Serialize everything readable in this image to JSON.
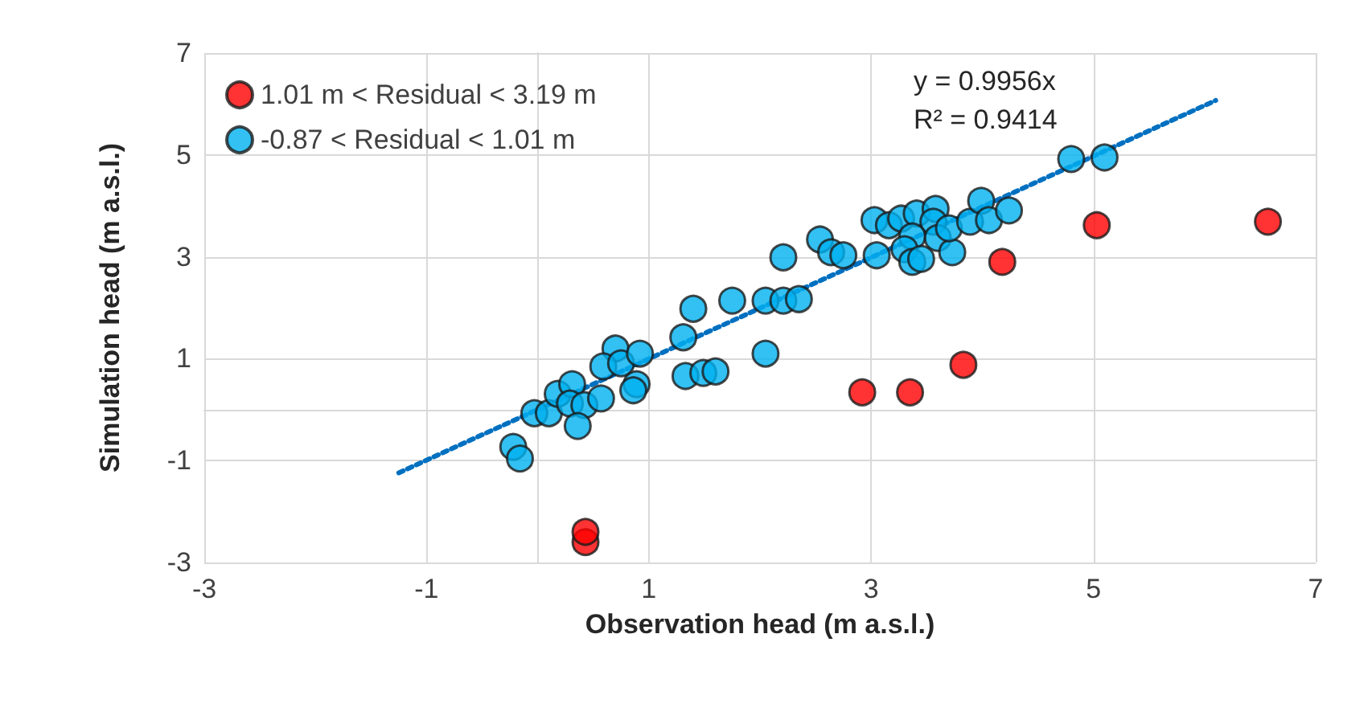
{
  "chart_data": {
    "type": "scatter",
    "xlabel": "Observation head (m a.s.l.)",
    "ylabel": "Simulation head (m a.s.l.)",
    "xlim": [
      -3,
      7
    ],
    "xticks": [
      -3,
      -1,
      1,
      3,
      5,
      7
    ],
    "ylim": [
      -3,
      7
    ],
    "yticks": [
      -3,
      -1,
      1,
      3,
      5,
      7
    ],
    "grid": true,
    "legend": "top left",
    "marker": "circle",
    "annotations": [
      "y = 0.9956x",
      "R² = 0.9414"
    ],
    "series": [
      {
        "name": "1.01 m < Residual < 3.19 m",
        "color": "#ff0000",
        "x": [
          0.43,
          0.43,
          2.92,
          3.35,
          3.83,
          4.18,
          5.03,
          6.57
        ],
        "values": [
          -2.6,
          -2.4,
          0.34,
          0.34,
          0.88,
          2.9,
          3.62,
          3.69
        ]
      },
      {
        "name": "-0.87 < Residual < 1.01 m",
        "color": "#00b0f0",
        "x": [
          -0.22,
          -0.16,
          -0.03,
          0.1,
          0.18,
          0.31,
          0.29,
          0.42,
          0.36,
          0.57,
          0.7,
          0.59,
          0.75,
          0.92,
          0.89,
          0.86,
          1.31,
          1.33,
          1.49,
          1.6,
          1.4,
          1.75,
          2.05,
          2.05,
          2.21,
          2.35,
          2.21,
          2.54,
          2.64,
          2.75,
          3.05,
          3.03,
          3.16,
          3.27,
          3.41,
          3.58,
          3.56,
          3.37,
          3.3,
          3.37,
          3.45,
          3.6,
          3.73,
          3.7,
          3.89,
          3.99,
          4.06,
          4.24,
          4.8,
          5.1
        ],
        "values": [
          -0.73,
          -0.96,
          -0.07,
          -0.07,
          0.31,
          0.5,
          0.12,
          0.09,
          -0.32,
          0.22,
          1.2,
          0.85,
          0.91,
          1.1,
          0.5,
          0.38,
          1.42,
          0.66,
          0.72,
          0.75,
          1.98,
          2.14,
          1.1,
          2.14,
          2.14,
          2.17,
          2.99,
          3.34,
          3.09,
          3.03,
          3.03,
          3.72,
          3.62,
          3.75,
          3.85,
          3.94,
          3.69,
          3.4,
          3.15,
          2.9,
          2.96,
          3.37,
          3.09,
          3.56,
          3.69,
          4.1,
          3.72,
          3.91,
          4.92,
          4.95
        ]
      },
      {
        "type": "line",
        "color": "#0070c0",
        "line_style": "dotted",
        "marker": "none",
        "x": [
          -1.25,
          6.1
        ],
        "values": [
          -1.24,
          6.07
        ]
      }
    ]
  }
}
